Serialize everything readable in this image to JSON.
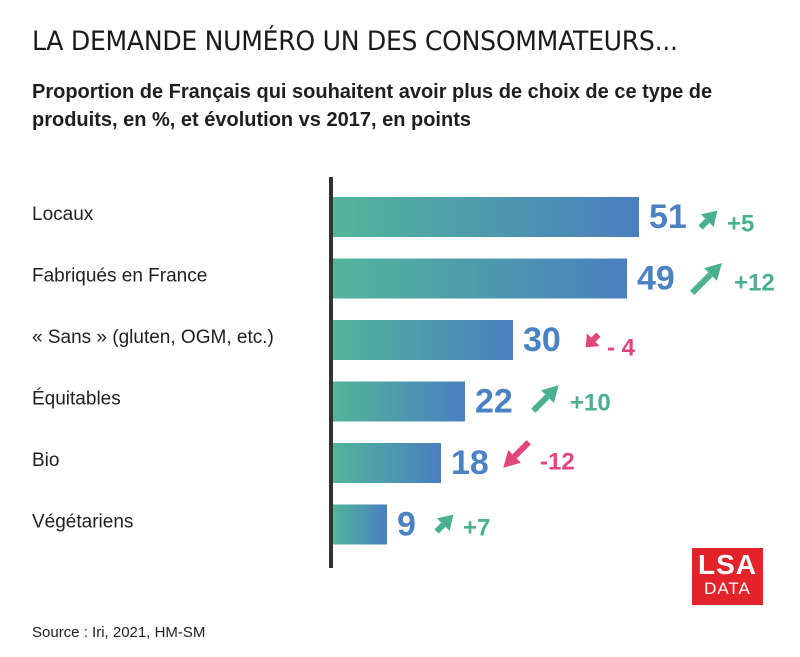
{
  "title": "LA DEMANDE NUMÉRO UN DES CONSOMMATEURS...",
  "subtitle": "Proportion de Français qui souhaitent avoir plus de choix de ce type de produits, en %, et évolution vs 2017, en points",
  "source": "Source : Iri, 2021, HM-SM",
  "logo": {
    "line1": "LSA",
    "line2": "DATA"
  },
  "colors": {
    "bar_start": "#52b59a",
    "bar_end": "#4a7fc0",
    "value_text": "#4a82c4",
    "positive": "#4ab08f",
    "negative": "#e0457b",
    "axis": "#333333",
    "brand": "#e2232a"
  },
  "chart_data": {
    "type": "bar",
    "orientation": "horizontal",
    "categories": [
      "Locaux",
      "Fabriqués en France",
      "« Sans » (gluten, OGM, etc.)",
      "Équitables",
      "Bio",
      "Végétariens"
    ],
    "values": [
      51,
      49,
      30,
      22,
      18,
      9
    ],
    "value_labels": [
      "51",
      "49",
      "30",
      "22",
      "18",
      "9"
    ],
    "evolution": [
      5,
      12,
      -4,
      10,
      -12,
      7
    ],
    "evolution_labels": [
      "+5",
      "+12",
      "- 4",
      "+10",
      "-12",
      "+7"
    ],
    "xlim": [
      0,
      55
    ],
    "grid": false,
    "legend": "none"
  }
}
